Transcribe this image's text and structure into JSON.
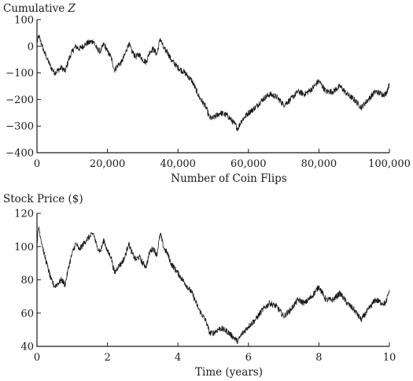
{
  "chart_data": [
    {
      "type": "line",
      "title": "",
      "ylabel_prefix": "Cumulative ",
      "ylabel_var": "Z",
      "xlabel": "Number of Coin Flips",
      "xlim": [
        0,
        100000
      ],
      "ylim": [
        -400,
        100
      ],
      "xticks": [
        0,
        20000,
        40000,
        60000,
        80000,
        100000
      ],
      "xtick_labels": [
        "0",
        "20,000",
        "40,000",
        "60,000",
        "80,000",
        "100,000"
      ],
      "yticks": [
        100,
        0,
        -100,
        -200,
        -300,
        -400
      ],
      "ytick_labels": [
        "100",
        "0",
        "−100",
        "−200",
        "−300",
        "−400"
      ],
      "grid": false,
      "series": [
        {
          "x": [
            0,
            500,
            1000,
            2000,
            3000,
            4000,
            5000,
            6000,
            7000,
            8000,
            9000,
            10000,
            11000,
            12000,
            14000,
            16000,
            17000,
            18000,
            19000,
            20000,
            21000,
            22000,
            23000,
            24000,
            25000,
            26000,
            27000,
            28000,
            29000,
            30000,
            31000,
            32000,
            33000,
            34000,
            35000,
            36000,
            37000,
            38000,
            40000,
            42000,
            44000,
            46000,
            48000,
            49000,
            50000,
            52000,
            54000,
            56000,
            57000,
            58000,
            60000,
            62000,
            64000,
            66000,
            68000,
            70000,
            72000,
            74000,
            76000,
            78000,
            80000,
            82000,
            84000,
            86000,
            88000,
            90000,
            92000,
            94000,
            96000,
            98000,
            99000,
            100000
          ],
          "values": [
            10,
            40,
            20,
            -20,
            -50,
            -80,
            -100,
            -90,
            -80,
            -95,
            -50,
            -20,
            0,
            -10,
            10,
            20,
            -10,
            -20,
            10,
            -20,
            -40,
            -90,
            -70,
            -60,
            -30,
            10,
            -20,
            -40,
            -30,
            -50,
            -60,
            -20,
            -10,
            -30,
            30,
            -10,
            -20,
            -50,
            -80,
            -100,
            -130,
            -190,
            -230,
            -270,
            -270,
            -250,
            -260,
            -290,
            -310,
            -280,
            -250,
            -230,
            -200,
            -180,
            -190,
            -220,
            -200,
            -170,
            -180,
            -160,
            -130,
            -170,
            -170,
            -150,
            -180,
            -200,
            -230,
            -200,
            -170,
            -180,
            -180,
            -140
          ]
        }
      ]
    },
    {
      "type": "line",
      "title": "",
      "ylabel": "Stock Price ($)",
      "xlabel": "Time (years)",
      "xlim": [
        0,
        10
      ],
      "ylim": [
        40,
        120
      ],
      "xticks": [
        0,
        2,
        4,
        6,
        8,
        10
      ],
      "xtick_labels": [
        "0",
        "2",
        "4",
        "6",
        "8",
        "10"
      ],
      "yticks": [
        120,
        100,
        80,
        60,
        40
      ],
      "ytick_labels": [
        "120",
        "100",
        "80",
        "60",
        "40"
      ],
      "grid": false,
      "series": [
        {
          "x": [
            0,
            0.05,
            0.1,
            0.2,
            0.3,
            0.4,
            0.5,
            0.6,
            0.7,
            0.8,
            0.9,
            1.0,
            1.1,
            1.2,
            1.4,
            1.6,
            1.7,
            1.8,
            1.9,
            2.0,
            2.1,
            2.2,
            2.3,
            2.4,
            2.5,
            2.6,
            2.7,
            2.8,
            2.9,
            3.0,
            3.1,
            3.2,
            3.3,
            3.4,
            3.5,
            3.6,
            3.7,
            3.8,
            4.0,
            4.2,
            4.4,
            4.6,
            4.8,
            4.9,
            5.0,
            5.2,
            5.4,
            5.6,
            5.7,
            5.8,
            6.0,
            6.2,
            6.4,
            6.6,
            6.8,
            7.0,
            7.2,
            7.4,
            7.6,
            7.8,
            8.0,
            8.2,
            8.4,
            8.6,
            8.8,
            9.0,
            9.2,
            9.4,
            9.6,
            9.8,
            9.9,
            10.0
          ],
          "values": [
            102,
            112,
            106,
            96,
            88,
            80,
            76,
            78,
            80,
            77,
            88,
            96,
            102,
            98,
            104,
            108,
            100,
            97,
            104,
            97,
            94,
            84,
            88,
            90,
            94,
            102,
            96,
            92,
            94,
            90,
            88,
            97,
            99,
            95,
            108,
            99,
            96,
            90,
            84,
            78,
            72,
            62,
            55,
            48,
            48,
            51,
            49,
            45,
            43,
            47,
            52,
            56,
            62,
            66,
            64,
            58,
            62,
            68,
            66,
            70,
            76,
            68,
            68,
            72,
            66,
            62,
            56,
            62,
            68,
            66,
            66,
            74
          ]
        }
      ]
    }
  ]
}
